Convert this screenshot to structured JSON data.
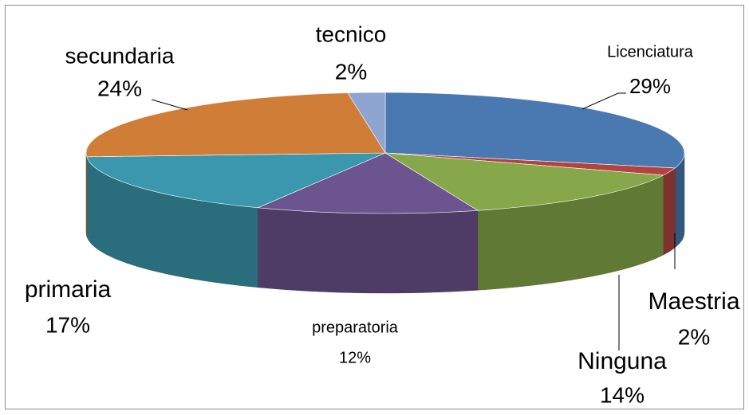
{
  "chart_data": {
    "type": "pie3d",
    "categories": [
      "Licenciatura",
      "Maestria",
      "Ninguna",
      "preparatoria",
      "primaria",
      "secundaria",
      "tecnico"
    ],
    "values": [
      29,
      2,
      14,
      12,
      17,
      24,
      2
    ],
    "value_labels": [
      "29%",
      "2%",
      "14%",
      "12%",
      "17%",
      "24%",
      "2%"
    ],
    "colors": [
      "#4a78b0",
      "#b2433f",
      "#86a84a",
      "#6c548e",
      "#3a97ad",
      "#d07d38",
      "#8ea5cf"
    ]
  }
}
